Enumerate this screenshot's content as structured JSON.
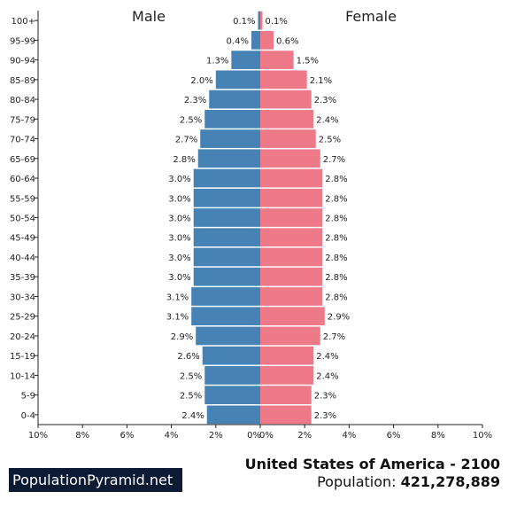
{
  "chart_data": {
    "type": "bar",
    "orientation": "horizontal",
    "categories": [
      "0-4",
      "5-9",
      "10-14",
      "15-19",
      "20-24",
      "25-29",
      "30-34",
      "35-39",
      "40-44",
      "45-49",
      "50-54",
      "55-59",
      "60-64",
      "65-69",
      "70-74",
      "75-79",
      "80-84",
      "85-89",
      "90-94",
      "95-99",
      "100+"
    ],
    "series": [
      {
        "name": "Male",
        "color": "#4682b4",
        "values": [
          2.4,
          2.5,
          2.5,
          2.6,
          2.9,
          3.1,
          3.1,
          3.0,
          3.0,
          3.0,
          3.0,
          3.0,
          3.0,
          2.8,
          2.7,
          2.5,
          2.3,
          2.0,
          1.3,
          0.4,
          0.1
        ],
        "labels": [
          "2.4%",
          "2.5%",
          "2.5%",
          "2.6%",
          "2.9%",
          "3.1%",
          "3.1%",
          "3.0%",
          "3.0%",
          "3.0%",
          "3.0%",
          "3.0%",
          "3.0%",
          "2.8%",
          "2.7%",
          "2.5%",
          "2.3%",
          "2.0%",
          "1.3%",
          "0.4%",
          "0.1%"
        ]
      },
      {
        "name": "Female",
        "color": "#ee7989",
        "values": [
          2.3,
          2.3,
          2.4,
          2.4,
          2.7,
          2.9,
          2.8,
          2.8,
          2.8,
          2.8,
          2.8,
          2.8,
          2.8,
          2.7,
          2.5,
          2.4,
          2.3,
          2.1,
          1.5,
          0.6,
          0.1
        ],
        "labels": [
          "2.3%",
          "2.3%",
          "2.4%",
          "2.4%",
          "2.7%",
          "2.9%",
          "2.8%",
          "2.8%",
          "2.8%",
          "2.8%",
          "2.8%",
          "2.8%",
          "2.8%",
          "2.7%",
          "2.5%",
          "2.4%",
          "2.3%",
          "2.1%",
          "1.5%",
          "0.6%",
          "0.1%"
        ]
      }
    ],
    "xlim": [
      -10,
      10
    ],
    "x_ticks": [
      "10%",
      "8%",
      "6%",
      "4%",
      "2%",
      "0%",
      "0%",
      "2%",
      "4%",
      "6%",
      "8%",
      "10%"
    ],
    "grid": false
  },
  "footer": {
    "title": "United States of America - 2100",
    "population_label": "Population:",
    "population_value": "421,278,889"
  },
  "brand": "PopulationPyramid.net"
}
